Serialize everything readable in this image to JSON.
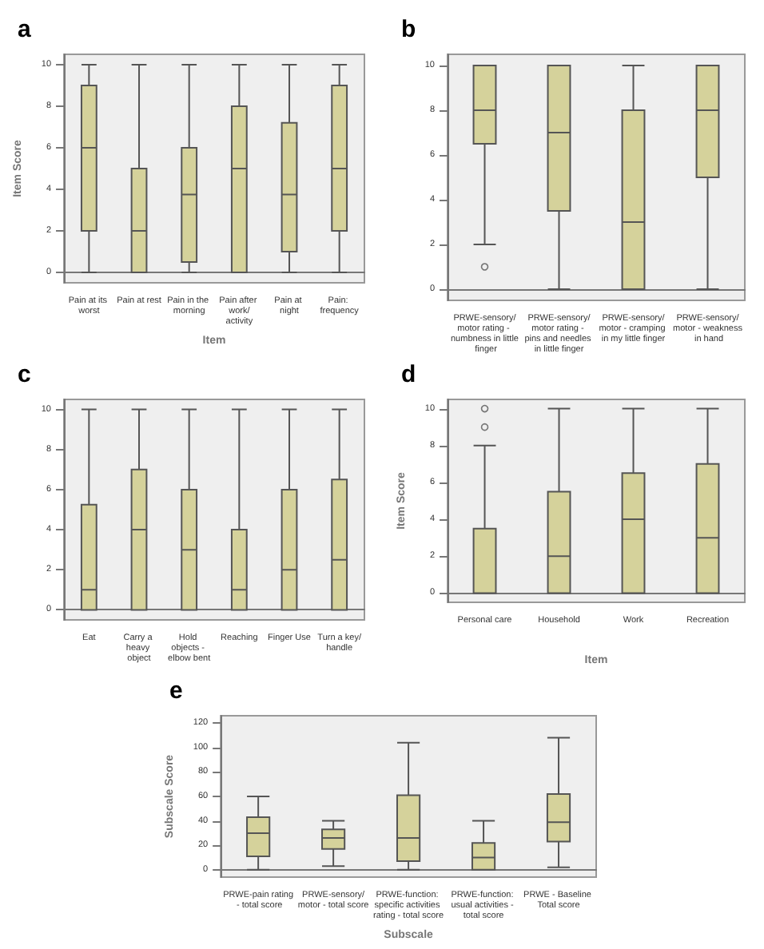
{
  "chart_data": [
    {
      "type": "box",
      "title": "a",
      "xlabel": "Item",
      "ylabel": "Item Score",
      "color": "#d5d29b",
      "ylim": [
        -0.5,
        10.5
      ],
      "yticks": [
        0,
        2,
        4,
        6,
        8,
        10
      ],
      "categories": [
        "Pain at its worst",
        "Pain at rest",
        "Pain in the morning",
        "Pain after work/activity",
        "Pain at night",
        "Pain: frequency"
      ],
      "boxes": [
        {
          "low": 0,
          "q1": 2,
          "median": 6,
          "q3": 9,
          "high": 10
        },
        {
          "low": 0,
          "q1": 0,
          "median": 2,
          "q3": 5,
          "high": 10
        },
        {
          "low": 0,
          "q1": 0.5,
          "median": 3.75,
          "q3": 6,
          "high": 10
        },
        {
          "low": 0,
          "q1": 0,
          "median": 5,
          "q3": 8,
          "high": 10
        },
        {
          "low": 0,
          "q1": 1,
          "median": 3.75,
          "q3": 7.2,
          "high": 10
        },
        {
          "low": 0,
          "q1": 2,
          "median": 5,
          "q3": 9,
          "high": 10
        }
      ]
    },
    {
      "type": "box",
      "title": "b",
      "color": "#d5d29b",
      "ylim": [
        -0.5,
        10.5
      ],
      "yticks": [
        0,
        2,
        4,
        6,
        8,
        10
      ],
      "categories": [
        "PRWE-sensory/motor rating - numbness in little finger",
        "PRWE-sensory/motor rating - pins and needles in little finger",
        "PRWE-sensory/motor - cramping in my little finger",
        "PRWE-sensory/motor - weakness in hand"
      ],
      "boxes": [
        {
          "low": 2,
          "q1": 6.5,
          "median": 8,
          "q3": 10,
          "high": 10,
          "outliers": [
            1
          ]
        },
        {
          "low": 0,
          "q1": 3.5,
          "median": 7,
          "q3": 10,
          "high": 10
        },
        {
          "low": 0,
          "q1": 0,
          "median": 3,
          "q3": 8,
          "high": 10
        },
        {
          "low": 0,
          "q1": 5,
          "median": 8,
          "q3": 10,
          "high": 10
        }
      ]
    },
    {
      "type": "box",
      "title": "c",
      "color": "#d5d29b",
      "ylim": [
        -0.5,
        10.5
      ],
      "yticks": [
        0,
        2,
        4,
        6,
        8,
        10
      ],
      "categories": [
        "Eat",
        "Carry a heavy object",
        "Hold objects - elbow bent",
        "Reaching",
        "Finger Use",
        "Turn a key/handle"
      ],
      "boxes": [
        {
          "low": 0,
          "q1": 0,
          "median": 1,
          "q3": 5.25,
          "high": 10
        },
        {
          "low": 0,
          "q1": 0,
          "median": 4,
          "q3": 7,
          "high": 10
        },
        {
          "low": 0,
          "q1": 0,
          "median": 3,
          "q3": 6,
          "high": 10
        },
        {
          "low": 0,
          "q1": 0,
          "median": 1,
          "q3": 4,
          "high": 10
        },
        {
          "low": 0,
          "q1": 0,
          "median": 2,
          "q3": 6,
          "high": 10
        },
        {
          "low": 0,
          "q1": 0,
          "median": 2.5,
          "q3": 6.5,
          "high": 10
        }
      ]
    },
    {
      "type": "box",
      "title": "d",
      "xlabel": "Item",
      "ylabel": "Item Score",
      "color": "#d5d29b",
      "ylim": [
        -0.5,
        10.5
      ],
      "yticks": [
        0,
        2,
        4,
        6,
        8,
        10
      ],
      "categories": [
        "Personal care",
        "Household",
        "Work",
        "Recreation"
      ],
      "boxes": [
        {
          "low": 0,
          "q1": 0,
          "median": 0,
          "q3": 3.5,
          "high": 8,
          "outliers": [
            9,
            10
          ]
        },
        {
          "low": 0,
          "q1": 0,
          "median": 2,
          "q3": 5.5,
          "high": 10
        },
        {
          "low": 0,
          "q1": 0,
          "median": 4,
          "q3": 6.5,
          "high": 10
        },
        {
          "low": 0,
          "q1": 0,
          "median": 3,
          "q3": 7,
          "high": 10
        }
      ]
    },
    {
      "type": "box",
      "title": "e",
      "xlabel": "Subscale",
      "ylabel": "Subscale Score",
      "color": "#d5d29b",
      "ylim": [
        -6,
        126
      ],
      "yticks": [
        0,
        20,
        40,
        60,
        80,
        100,
        120
      ],
      "categories": [
        "PRWE-pain rating - total score",
        "PRWE-sensory/motor - total score",
        "PRWE-function: specific activities rating - total score",
        "PRWE-function: usual activities - total score",
        "PRWE - Baseline Total score"
      ],
      "boxes": [
        {
          "low": 0,
          "q1": 11,
          "median": 30,
          "q3": 43,
          "high": 60
        },
        {
          "low": 3,
          "q1": 17,
          "median": 26,
          "q3": 33,
          "high": 40
        },
        {
          "low": 0,
          "q1": 7,
          "median": 26,
          "q3": 61,
          "high": 104
        },
        {
          "low": 0,
          "q1": 0,
          "median": 10,
          "q3": 22,
          "high": 40
        },
        {
          "low": 2,
          "q1": 23,
          "median": 39,
          "q3": 62,
          "high": 108
        }
      ]
    }
  ]
}
